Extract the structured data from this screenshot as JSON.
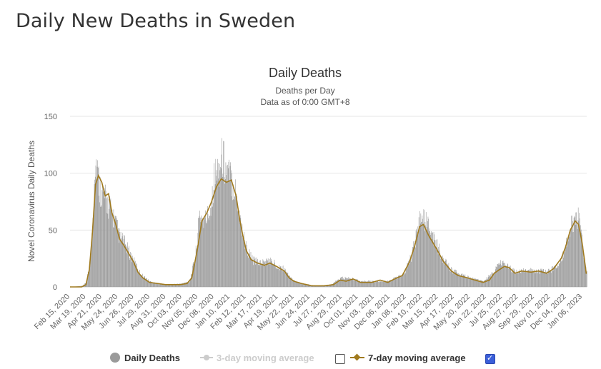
{
  "page_title": "Daily New Deaths in Sweden",
  "colors": {
    "bars": "#9a9a9a",
    "ma7": "#a07a1e",
    "ma3": "#cccccc",
    "grid": "#e6e6e6",
    "checkbox_on": "#3b5fd9"
  },
  "legend": {
    "daily": "Daily Deaths",
    "ma3": "3-day moving average",
    "ma7": "7-day moving average",
    "ma3_checked": false,
    "ma7_checked": true
  },
  "chart_data": {
    "type": "bar",
    "title": "Daily Deaths",
    "subtitle": "Deaths per Day",
    "subtitle2": "Data as of 0:00 GMT+8",
    "ylabel": "Novel Coronavirus Daily Deaths",
    "ylim": [
      0,
      150
    ],
    "yticks": [
      0,
      50,
      100,
      150
    ],
    "grid": true,
    "x_start": "2020-02-15",
    "x_end": "2023-01-23",
    "xticks": [
      "Feb 15, 2020",
      "Mar 19, 2020",
      "Apr 21, 2020",
      "May 24, 2020",
      "Jun 26, 2020",
      "Jul 29, 2020",
      "Aug 31, 2020",
      "Oct 03, 2020",
      "Nov 05, 2020",
      "Dec 08, 2020",
      "Jan 10, 2021",
      "Feb 12, 2021",
      "Mar 17, 2021",
      "Apr 19, 2021",
      "May 22, 2021",
      "Jun 24, 2021",
      "Jul 27, 2021",
      "Aug 29, 2021",
      "Oct 01, 2021",
      "Nov 03, 2021",
      "Dec 06, 2021",
      "Jan 08, 2022",
      "Feb 10, 2022",
      "Mar 15, 2022",
      "Apr 17, 2022",
      "May 20, 2022",
      "Jun 22, 2022",
      "Jul 25, 2022",
      "Aug 27, 2022",
      "Sep 29, 2022",
      "Nov 01, 2022",
      "Dec 04, 2022",
      "Jan 06, 2023"
    ],
    "series": [
      {
        "name": "7-day moving average",
        "points": [
          [
            "2020-02-15",
            0
          ],
          [
            "2020-03-10",
            0
          ],
          [
            "2020-03-19",
            2
          ],
          [
            "2020-03-26",
            15
          ],
          [
            "2020-04-01",
            45
          ],
          [
            "2020-04-08",
            90
          ],
          [
            "2020-04-14",
            98
          ],
          [
            "2020-04-21",
            92
          ],
          [
            "2020-04-28",
            80
          ],
          [
            "2020-05-05",
            82
          ],
          [
            "2020-05-12",
            65
          ],
          [
            "2020-05-20",
            55
          ],
          [
            "2020-05-28",
            42
          ],
          [
            "2020-06-05",
            37
          ],
          [
            "2020-06-15",
            30
          ],
          [
            "2020-06-26",
            22
          ],
          [
            "2020-07-05",
            13
          ],
          [
            "2020-07-15",
            8
          ],
          [
            "2020-07-29",
            4
          ],
          [
            "2020-08-15",
            3
          ],
          [
            "2020-09-01",
            2
          ],
          [
            "2020-10-01",
            2
          ],
          [
            "2020-10-15",
            3
          ],
          [
            "2020-10-25",
            8
          ],
          [
            "2020-11-05",
            32
          ],
          [
            "2020-11-15",
            58
          ],
          [
            "2020-11-25",
            65
          ],
          [
            "2020-12-05",
            75
          ],
          [
            "2020-12-15",
            88
          ],
          [
            "2020-12-25",
            95
          ],
          [
            "2021-01-05",
            92
          ],
          [
            "2021-01-15",
            94
          ],
          [
            "2021-01-25",
            80
          ],
          [
            "2021-02-01",
            60
          ],
          [
            "2021-02-08",
            45
          ],
          [
            "2021-02-15",
            32
          ],
          [
            "2021-02-25",
            24
          ],
          [
            "2021-03-10",
            21
          ],
          [
            "2021-03-25",
            19
          ],
          [
            "2021-04-05",
            21
          ],
          [
            "2021-04-19",
            18
          ],
          [
            "2021-05-05",
            14
          ],
          [
            "2021-05-15",
            8
          ],
          [
            "2021-05-25",
            5
          ],
          [
            "2021-06-10",
            3
          ],
          [
            "2021-07-01",
            1
          ],
          [
            "2021-07-27",
            1
          ],
          [
            "2021-08-15",
            2
          ],
          [
            "2021-08-29",
            6
          ],
          [
            "2021-09-10",
            5
          ],
          [
            "2021-09-25",
            7
          ],
          [
            "2021-10-10",
            4
          ],
          [
            "2021-11-03",
            4
          ],
          [
            "2021-11-20",
            6
          ],
          [
            "2021-12-06",
            4
          ],
          [
            "2021-12-20",
            7
          ],
          [
            "2022-01-05",
            10
          ],
          [
            "2022-01-20",
            22
          ],
          [
            "2022-01-30",
            35
          ],
          [
            "2022-02-10",
            53
          ],
          [
            "2022-02-18",
            55
          ],
          [
            "2022-03-01",
            45
          ],
          [
            "2022-03-15",
            35
          ],
          [
            "2022-04-01",
            22
          ],
          [
            "2022-04-17",
            14
          ],
          [
            "2022-05-01",
            10
          ],
          [
            "2022-05-20",
            8
          ],
          [
            "2022-06-05",
            6
          ],
          [
            "2022-06-22",
            4
          ],
          [
            "2022-07-05",
            6
          ],
          [
            "2022-07-15",
            12
          ],
          [
            "2022-07-25",
            15
          ],
          [
            "2022-08-05",
            18
          ],
          [
            "2022-08-15",
            17
          ],
          [
            "2022-08-27",
            12
          ],
          [
            "2022-09-10",
            14
          ],
          [
            "2022-09-29",
            13
          ],
          [
            "2022-10-15",
            14
          ],
          [
            "2022-11-01",
            12
          ],
          [
            "2022-11-15",
            16
          ],
          [
            "2022-12-01",
            25
          ],
          [
            "2022-12-10",
            35
          ],
          [
            "2022-12-20",
            50
          ],
          [
            "2022-12-30",
            58
          ],
          [
            "2023-01-06",
            55
          ],
          [
            "2023-01-13",
            40
          ],
          [
            "2023-01-18",
            25
          ],
          [
            "2023-01-22",
            12
          ]
        ]
      },
      {
        "name": "Daily Deaths",
        "points": [
          [
            "2020-02-15",
            0
          ],
          [
            "2020-03-12",
            1
          ],
          [
            "2020-03-19",
            4
          ],
          [
            "2020-03-26",
            18
          ],
          [
            "2020-04-01",
            50
          ],
          [
            "2020-04-06",
            115
          ],
          [
            "2020-04-10",
            113
          ],
          [
            "2020-04-16",
            92
          ],
          [
            "2020-04-22",
            85
          ],
          [
            "2020-05-01",
            78
          ],
          [
            "2020-05-10",
            70
          ],
          [
            "2020-05-20",
            58
          ],
          [
            "2020-05-28",
            45
          ],
          [
            "2020-06-05",
            42
          ],
          [
            "2020-06-15",
            33
          ],
          [
            "2020-06-26",
            24
          ],
          [
            "2020-07-10",
            12
          ],
          [
            "2020-07-29",
            5
          ],
          [
            "2020-08-15",
            3
          ],
          [
            "2020-09-01",
            2
          ],
          [
            "2020-10-03",
            3
          ],
          [
            "2020-10-20",
            5
          ],
          [
            "2020-11-01",
            28
          ],
          [
            "2020-11-10",
            67
          ],
          [
            "2020-11-20",
            60
          ],
          [
            "2020-12-01",
            70
          ],
          [
            "2020-12-10",
            100
          ],
          [
            "2020-12-20",
            110
          ],
          [
            "2020-12-28",
            120
          ],
          [
            "2021-01-05",
            105
          ],
          [
            "2021-01-15",
            100
          ],
          [
            "2021-01-25",
            85
          ],
          [
            "2021-02-05",
            55
          ],
          [
            "2021-02-15",
            35
          ],
          [
            "2021-03-01",
            24
          ],
          [
            "2021-03-17",
            22
          ],
          [
            "2021-04-05",
            24
          ],
          [
            "2021-04-19",
            20
          ],
          [
            "2021-05-05",
            16
          ],
          [
            "2021-05-22",
            6
          ],
          [
            "2021-06-10",
            3
          ],
          [
            "2021-07-10",
            1
          ],
          [
            "2021-08-10",
            2
          ],
          [
            "2021-08-29",
            8
          ],
          [
            "2021-09-20",
            8
          ],
          [
            "2021-10-10",
            5
          ],
          [
            "2021-11-03",
            5
          ],
          [
            "2021-12-06",
            5
          ],
          [
            "2022-01-08",
            12
          ],
          [
            "2022-01-25",
            30
          ],
          [
            "2022-02-08",
            58
          ],
          [
            "2022-02-15",
            64
          ],
          [
            "2022-03-01",
            55
          ],
          [
            "2022-03-15",
            40
          ],
          [
            "2022-04-01",
            25
          ],
          [
            "2022-04-17",
            15
          ],
          [
            "2022-05-20",
            9
          ],
          [
            "2022-06-22",
            5
          ],
          [
            "2022-07-15",
            14
          ],
          [
            "2022-07-25",
            22
          ],
          [
            "2022-08-05",
            20
          ],
          [
            "2022-08-27",
            14
          ],
          [
            "2022-09-29",
            15
          ],
          [
            "2022-11-01",
            14
          ],
          [
            "2022-11-20",
            18
          ],
          [
            "2022-12-04",
            28
          ],
          [
            "2022-12-20",
            55
          ],
          [
            "2022-12-28",
            64
          ],
          [
            "2023-01-06",
            62
          ],
          [
            "2023-01-15",
            35
          ],
          [
            "2023-01-22",
            14
          ]
        ]
      }
    ]
  }
}
